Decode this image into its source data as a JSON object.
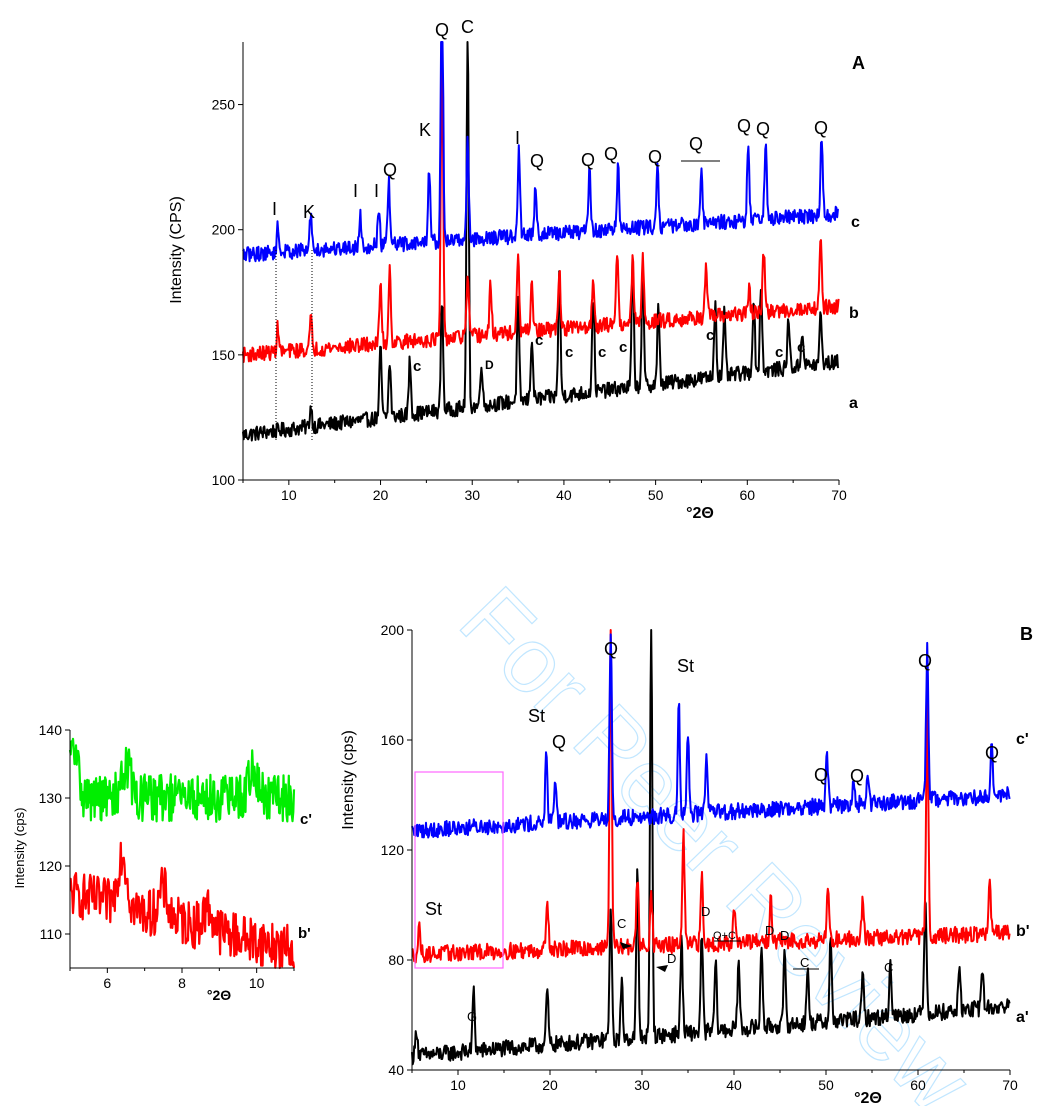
{
  "watermark": "For Peer Review",
  "chart_data": [
    {
      "type": "line",
      "panel_label": "A",
      "xlabel": "°2Θ",
      "ylabel": "Intensity (CPS)",
      "xlim": [
        5,
        70
      ],
      "ylim": [
        100,
        275
      ],
      "xticks": [
        10,
        20,
        30,
        40,
        50,
        60,
        70
      ],
      "yticks": [
        100,
        150,
        200,
        250
      ],
      "series": [
        {
          "name": "a",
          "color": "#000000",
          "base": 118,
          "slope": 0.45,
          "peaks": [
            [
              12.4,
              8
            ],
            [
              20,
              28
            ],
            [
              21,
              22
            ],
            [
              23.2,
              22
            ],
            [
              26.7,
              45
            ],
            [
              29.5,
              150
            ],
            [
              31,
              18
            ],
            [
              35,
              40
            ],
            [
              36.5,
              25
            ],
            [
              39.5,
              50
            ],
            [
              43.2,
              40
            ],
            [
              47.5,
              50
            ],
            [
              48.6,
              45
            ],
            [
              50.3,
              30
            ],
            [
              56.5,
              30
            ],
            [
              57.5,
              25
            ],
            [
              60.7,
              30
            ],
            [
              61.5,
              35
            ],
            [
              64.5,
              20
            ],
            [
              66,
              15
            ],
            [
              68,
              20
            ]
          ]
        },
        {
          "name": "b",
          "color": "#ff0000",
          "base": 150,
          "slope": 0.3,
          "peaks": [
            [
              8.8,
              10
            ],
            [
              12.4,
              12
            ],
            [
              20,
              25
            ],
            [
              21,
              30
            ],
            [
              26.7,
              120
            ],
            [
              29.5,
              25
            ],
            [
              32,
              20
            ],
            [
              35,
              30
            ],
            [
              36.5,
              20
            ],
            [
              39.5,
              25
            ],
            [
              43.2,
              20
            ],
            [
              45.8,
              30
            ],
            [
              47.5,
              25
            ],
            [
              48.6,
              25
            ],
            [
              55.5,
              20
            ],
            [
              60.2,
              10
            ],
            [
              61.8,
              25
            ],
            [
              68,
              30
            ]
          ]
        },
        {
          "name": "c",
          "color": "#0000ff",
          "base": 190,
          "slope": 0.25,
          "peaks": [
            [
              8.8,
              10
            ],
            [
              12.4,
              15
            ],
            [
              17.8,
              12
            ],
            [
              19.8,
              15
            ],
            [
              20.9,
              25
            ],
            [
              25.3,
              30
            ],
            [
              26.7,
              110
            ],
            [
              29.5,
              40
            ],
            [
              35.1,
              35
            ],
            [
              36.9,
              20
            ],
            [
              42.8,
              25
            ],
            [
              45.9,
              25
            ],
            [
              50.2,
              25
            ],
            [
              55,
              20
            ],
            [
              60.1,
              30
            ],
            [
              62,
              30
            ],
            [
              68.1,
              30
            ]
          ]
        }
      ],
      "annotations": [
        "Q",
        "C",
        "K",
        "I",
        "K",
        "I",
        "I",
        "Q",
        "I",
        "Q",
        "Q",
        "Q",
        "Q",
        "Q",
        "Q",
        "Q",
        "Q",
        "c",
        "D",
        "c",
        "c",
        "c",
        "c",
        "c",
        "c",
        "c"
      ],
      "curve_labels": [
        "a",
        "b",
        "c"
      ]
    },
    {
      "type": "line",
      "panel_label": "B",
      "xlabel": "°2Θ",
      "ylabel": "Intensity (cps)",
      "xlim": [
        5,
        70
      ],
      "ylim": [
        40,
        200
      ],
      "xticks": [
        10,
        20,
        30,
        40,
        50,
        60,
        70
      ],
      "yticks": [
        40,
        80,
        120,
        160,
        200
      ],
      "series": [
        {
          "name": "a'",
          "color": "#000000",
          "base": 45,
          "slope": 0.28,
          "peaks": [
            [
              5.5,
              10
            ],
            [
              11.7,
              22
            ],
            [
              19.7,
              20
            ],
            [
              26.6,
              50
            ],
            [
              27.8,
              20
            ],
            [
              29.5,
              60
            ],
            [
              31,
              155
            ],
            [
              34.3,
              35
            ],
            [
              36.5,
              35
            ],
            [
              38,
              25
            ],
            [
              40.5,
              25
            ],
            [
              43,
              30
            ],
            [
              45.5,
              25
            ],
            [
              48,
              20
            ],
            [
              50.5,
              30
            ],
            [
              54,
              15
            ],
            [
              57,
              20
            ],
            [
              60.8,
              45
            ],
            [
              64.5,
              15
            ],
            [
              67,
              15
            ]
          ]
        },
        {
          "name": "b'",
          "color": "#ff0000",
          "base": 82,
          "slope": 0.12,
          "peaks": [
            [
              5.8,
              10
            ],
            [
              19.7,
              20
            ],
            [
              26.6,
              118
            ],
            [
              29.5,
              25
            ],
            [
              31,
              20
            ],
            [
              34.5,
              40
            ],
            [
              36.5,
              25
            ],
            [
              40,
              15
            ],
            [
              44,
              15
            ],
            [
              50.2,
              20
            ],
            [
              54,
              15
            ],
            [
              61,
              85
            ],
            [
              67.8,
              20
            ]
          ]
        },
        {
          "name": "c'",
          "color": "#0000ff",
          "base": 127,
          "slope": 0.2,
          "peaks": [
            [
              19.6,
              25
            ],
            [
              20.6,
              15
            ],
            [
              26.6,
              70
            ],
            [
              34,
              40
            ],
            [
              35,
              30
            ],
            [
              37,
              20
            ],
            [
              50.1,
              20
            ],
            [
              53,
              10
            ],
            [
              54.5,
              10
            ],
            [
              61,
              55
            ],
            [
              68,
              20
            ]
          ]
        }
      ],
      "annotations": [
        "Q",
        "St",
        "St",
        "Q",
        "Q",
        "Q",
        "Q",
        "Q",
        "St",
        "G",
        "C",
        "D",
        "D",
        "Q+C",
        "D",
        "D",
        "C",
        "C"
      ],
      "curve_labels": [
        "a'",
        "b'",
        "c'"
      ]
    },
    {
      "type": "line",
      "panel_label": "",
      "xlabel": "°2Θ",
      "ylabel": "Intensity (cps)",
      "xlim": [
        5,
        11
      ],
      "ylim": [
        105,
        140
      ],
      "xticks": [
        6,
        8,
        10
      ],
      "yticks": [
        110,
        120,
        130,
        140
      ],
      "series": [
        {
          "name": "b'",
          "color": "#ff0000",
          "base": 116,
          "slope": -1.4,
          "peaks": [
            [
              6.4,
              8
            ],
            [
              7.5,
              4
            ],
            [
              8.7,
              3
            ]
          ]
        },
        {
          "name": "c'",
          "color": "#00ee00",
          "base": 130,
          "slope": 0,
          "peaks": [
            [
              5.1,
              7
            ],
            [
              6.5,
              5
            ],
            [
              9.9,
              4
            ]
          ]
        }
      ],
      "curve_labels": [
        "b'",
        "c'"
      ]
    }
  ]
}
